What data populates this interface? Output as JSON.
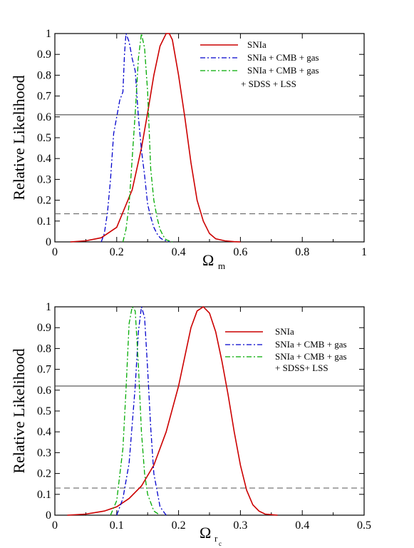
{
  "chart_data": [
    {
      "type": "line",
      "ylabel": "Relative Likelihood",
      "xlabel_main": "Ω",
      "xlabel_sub": "m",
      "xlim": [
        0,
        1
      ],
      "ylim": [
        0,
        1
      ],
      "xticks": [
        "0",
        "0.2",
        "0.4",
        "0.6",
        "0.8",
        "1"
      ],
      "yticks": [
        "0",
        "0.1",
        "0.2",
        "0.3",
        "0.4",
        "0.5",
        "0.6",
        "0.7",
        "0.8",
        "0.9",
        "1"
      ],
      "hlines": [
        {
          "y": 0.61,
          "style": "solid"
        },
        {
          "y": 0.135,
          "style": "dashed"
        }
      ],
      "series": [
        {
          "name": "SNIa",
          "color": "#cc0000",
          "dash": "solid",
          "x": [
            0.05,
            0.1,
            0.15,
            0.2,
            0.25,
            0.28,
            0.3,
            0.32,
            0.34,
            0.36,
            0.37,
            0.38,
            0.4,
            0.42,
            0.44,
            0.46,
            0.48,
            0.5,
            0.52,
            0.55,
            0.58,
            0.6
          ],
          "y": [
            0.0,
            0.005,
            0.02,
            0.07,
            0.25,
            0.45,
            0.62,
            0.8,
            0.94,
            1.0,
            1.0,
            0.97,
            0.8,
            0.6,
            0.38,
            0.2,
            0.1,
            0.04,
            0.015,
            0.005,
            0.001,
            0.0
          ]
        },
        {
          "name": "SNIa + CMB + gas",
          "color": "#0000cc",
          "dash": "dashdot",
          "x": [
            0.15,
            0.16,
            0.17,
            0.18,
            0.19,
            0.2,
            0.21,
            0.22,
            0.225,
            0.23,
            0.24,
            0.25,
            0.26,
            0.27,
            0.28,
            0.29,
            0.3,
            0.31,
            0.32,
            0.33,
            0.34,
            0.35,
            0.37
          ],
          "y": [
            0.0,
            0.04,
            0.14,
            0.3,
            0.52,
            0.6,
            0.68,
            0.72,
            0.9,
            1.0,
            0.96,
            0.88,
            0.82,
            0.6,
            0.44,
            0.32,
            0.18,
            0.12,
            0.07,
            0.04,
            0.02,
            0.01,
            0.0
          ]
        },
        {
          "name": "SNIa + CMB + gas + SDSS + LSS",
          "color": "#00aa00",
          "dash": "dashdot",
          "x": [
            0.22,
            0.23,
            0.24,
            0.25,
            0.26,
            0.27,
            0.28,
            0.29,
            0.3,
            0.31,
            0.32,
            0.33,
            0.34,
            0.35,
            0.36,
            0.38
          ],
          "y": [
            0.0,
            0.06,
            0.18,
            0.4,
            0.62,
            0.88,
            1.0,
            0.93,
            0.72,
            0.35,
            0.2,
            0.12,
            0.06,
            0.03,
            0.01,
            0.0
          ]
        }
      ],
      "legend": {
        "placement": "top-right",
        "entries": [
          "SNIa",
          "SNIa + CMB + gas",
          "SNIa + CMB + gas",
          "+ SDSS + LSS"
        ]
      }
    },
    {
      "type": "line",
      "ylabel": "Relative Likelihood",
      "xlabel_main": "Ω",
      "xlabel_sub": "r",
      "xlabel_subsub": "c",
      "xlim": [
        0,
        0.5
      ],
      "ylim": [
        0,
        1
      ],
      "xticks": [
        "0",
        "0.1",
        "0.2",
        "0.3",
        "0.4",
        "0.5"
      ],
      "yticks": [
        "0",
        "0.1",
        "0.2",
        "0.3",
        "0.4",
        "0.5",
        "0.6",
        "0.7",
        "0.8",
        "0.9",
        "1"
      ],
      "hlines": [
        {
          "y": 0.62,
          "style": "solid"
        },
        {
          "y": 0.13,
          "style": "dashed"
        }
      ],
      "series": [
        {
          "name": "SNIa",
          "color": "#cc0000",
          "dash": "solid",
          "x": [
            0.02,
            0.05,
            0.08,
            0.1,
            0.12,
            0.14,
            0.16,
            0.18,
            0.2,
            0.21,
            0.22,
            0.23,
            0.24,
            0.25,
            0.26,
            0.27,
            0.28,
            0.29,
            0.3,
            0.31,
            0.32,
            0.33,
            0.34,
            0.36
          ],
          "y": [
            0.0,
            0.005,
            0.02,
            0.04,
            0.08,
            0.14,
            0.24,
            0.4,
            0.62,
            0.76,
            0.9,
            0.98,
            1.0,
            0.97,
            0.88,
            0.74,
            0.58,
            0.4,
            0.24,
            0.12,
            0.05,
            0.02,
            0.005,
            0.0
          ]
        },
        {
          "name": "SNIa + CMB + gas",
          "color": "#0000cc",
          "dash": "dashdot",
          "x": [
            0.1,
            0.11,
            0.12,
            0.13,
            0.135,
            0.14,
            0.145,
            0.15,
            0.155,
            0.16,
            0.17,
            0.18
          ],
          "y": [
            0.0,
            0.08,
            0.25,
            0.62,
            0.88,
            1.0,
            0.95,
            0.7,
            0.42,
            0.2,
            0.04,
            0.0
          ]
        },
        {
          "name": "SNIa + CMB + gas + SDSS+ LSS",
          "color": "#00aa00",
          "dash": "dashdot",
          "x": [
            0.09,
            0.1,
            0.11,
            0.115,
            0.12,
            0.125,
            0.13,
            0.135,
            0.14,
            0.145,
            0.15,
            0.16,
            0.17
          ],
          "y": [
            0.0,
            0.07,
            0.32,
            0.6,
            0.92,
            1.0,
            0.98,
            0.72,
            0.4,
            0.2,
            0.1,
            0.02,
            0.0
          ]
        }
      ],
      "legend": {
        "placement": "top-right",
        "entries": [
          "SNIa",
          "SNIa + CMB + gas",
          "SNIa + CMB + gas",
          "+ SDSS+ LSS"
        ]
      }
    }
  ]
}
